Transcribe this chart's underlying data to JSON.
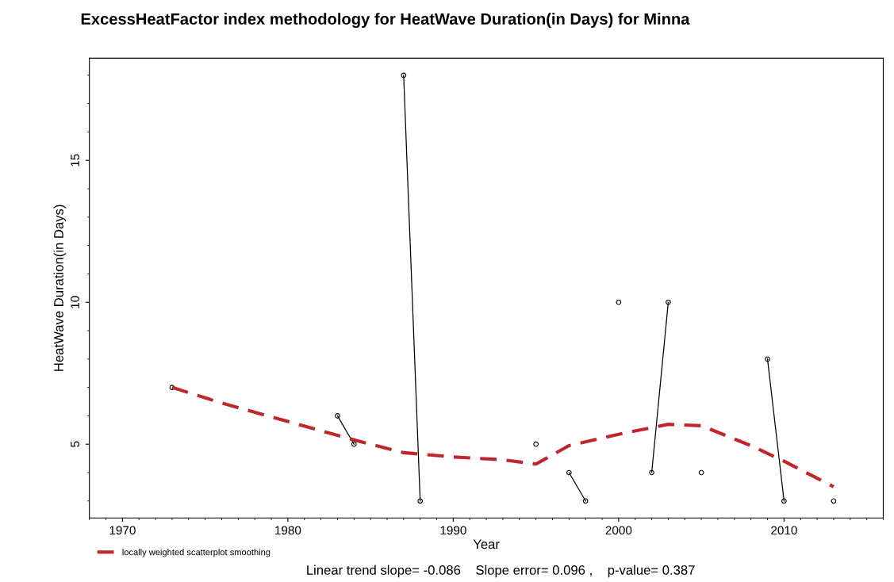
{
  "chart_data": {
    "type": "line",
    "title": "ExcessHeatFactor index methodology for HeatWave Duration(in Days) for Minna",
    "xlabel": "Year",
    "ylabel": "HeatWave Duration(in Days)",
    "x": [
      1973,
      1974,
      1975,
      1976,
      1977,
      1978,
      1979,
      1980,
      1981,
      1982,
      1983,
      1984,
      1985,
      1986,
      1987,
      1988,
      1989,
      1990,
      1991,
      1992,
      1993,
      1994,
      1995,
      1996,
      1997,
      1998,
      1999,
      2000,
      2001,
      2002,
      2003,
      2004,
      2005,
      2006,
      2007,
      2008,
      2009,
      2010,
      2011,
      2012,
      2013
    ],
    "series": [
      {
        "color": "#000000",
        "marker": "circle",
        "line_style": "solid",
        "values": [
          7,
          null,
          null,
          null,
          null,
          null,
          null,
          null,
          null,
          null,
          6,
          5,
          null,
          null,
          18,
          3,
          null,
          null,
          null,
          null,
          null,
          null,
          5,
          null,
          4,
          3,
          null,
          10,
          null,
          4,
          10,
          null,
          4,
          null,
          null,
          null,
          8,
          3,
          null,
          null,
          3
        ]
      },
      {
        "name": "locally weighted scatterplot smoothing",
        "color": "#c0262b",
        "marker": "none",
        "line_style": "dashed",
        "x": [
          1973,
          1976,
          1980,
          1984,
          1987,
          1990,
          1993,
          1995,
          1997,
          2000,
          2003,
          2005,
          2008,
          2010,
          2013
        ],
        "values": [
          7.0,
          6.45,
          5.8,
          5.15,
          4.7,
          4.55,
          4.45,
          4.3,
          4.95,
          5.35,
          5.7,
          5.65,
          4.95,
          4.4,
          3.5
        ]
      }
    ],
    "xlim": [
      1968,
      2016
    ],
    "xticks": [
      1970,
      1980,
      1990,
      2000,
      2010
    ],
    "ylim": [
      2.4,
      18.6
    ],
    "yticks": [
      5,
      10,
      15
    ],
    "grid": false,
    "legend": "bottom left",
    "annotations": [
      "Linear trend slope= -0.086    Slope error= 0.096 ,    p-value= 0.387"
    ]
  }
}
